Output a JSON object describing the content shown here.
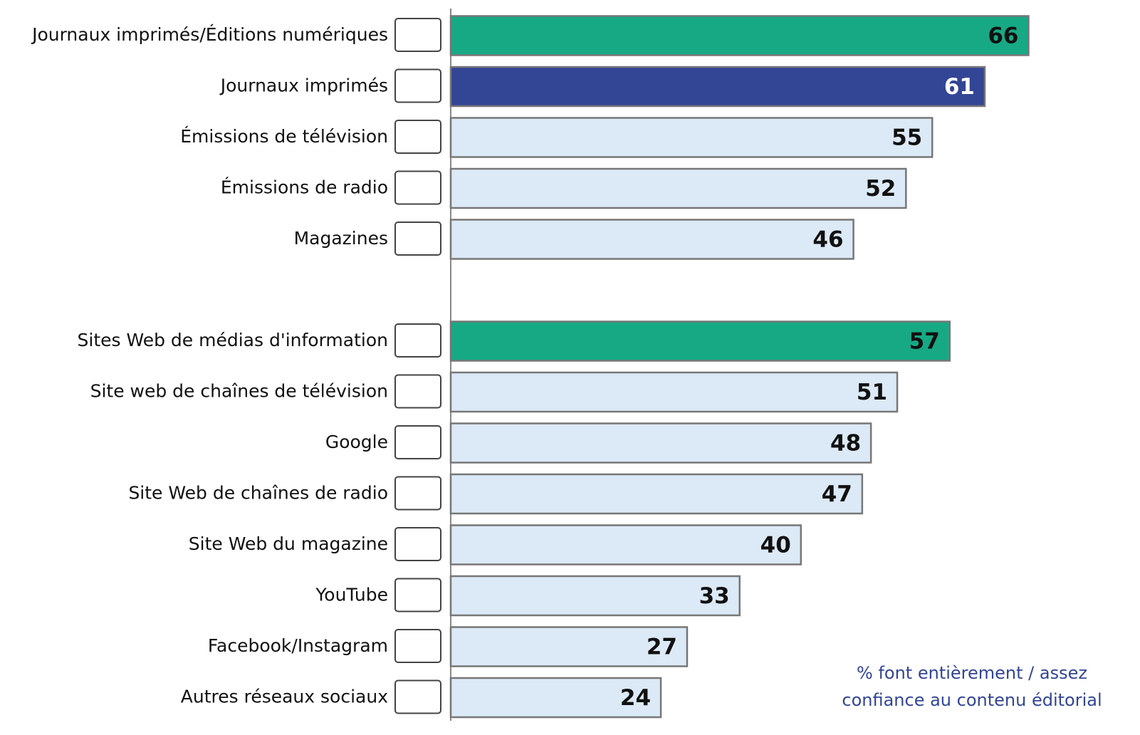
{
  "chart_data": {
    "type": "bar",
    "orientation": "horizontal",
    "categories": [
      "Journaux imprimés/Éditions numériques",
      "Journaux imprimés",
      "Émissions de télévision",
      "Émissions de radio",
      "Magazines",
      null,
      "Sites Web de médias d'information",
      "Site web de chaînes de télévision",
      "Google",
      "Site Web de chaînes de radio",
      "Site Web du magazine",
      "YouTube",
      "Facebook/Instagram",
      "Autres réseaux sociaux"
    ],
    "values": [
      66,
      61,
      55,
      52,
      46,
      null,
      57,
      51,
      48,
      47,
      40,
      33,
      27,
      24
    ],
    "colors": [
      "#17a984",
      "#334595",
      "#dce9f7",
      "#dce9f7",
      "#dce9f7",
      null,
      "#17a984",
      "#dce9f7",
      "#dce9f7",
      "#dce9f7",
      "#dce9f7",
      "#dce9f7",
      "#dce9f7",
      "#dce9f7"
    ],
    "xlim": [
      0,
      78
    ],
    "note": [
      "% font entièrement / assez",
      "confiance au contenu éditorial"
    ]
  }
}
